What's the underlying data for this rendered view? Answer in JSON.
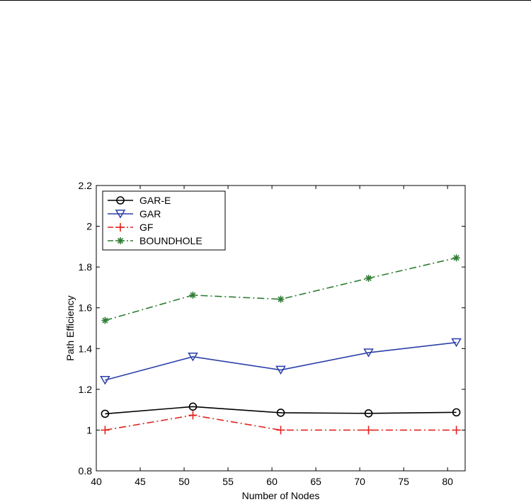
{
  "chart_data": {
    "type": "line",
    "title": "",
    "xlabel": "Number of Nodes",
    "ylabel": "Path Efficiency",
    "xlim": [
      40,
      82
    ],
    "ylim": [
      0.8,
      2.2
    ],
    "xticks": [
      40,
      45,
      50,
      55,
      60,
      65,
      70,
      75,
      80
    ],
    "yticks": [
      0.8,
      1,
      1.2,
      1.4,
      1.6,
      1.8,
      2,
      2.2
    ],
    "xtick_labels": [
      "40",
      "45",
      "50",
      "55",
      "60",
      "65",
      "70",
      "75",
      "80"
    ],
    "ytick_labels": [
      "0.8",
      "1",
      "1.2",
      "1.4",
      "1.6",
      "1.8",
      "2",
      "2.2"
    ],
    "grid": false,
    "legend_position": "top-left",
    "x": [
      41,
      51,
      61,
      71,
      81
    ],
    "series": [
      {
        "name": "GAR-E",
        "values": [
          1.08,
          1.115,
          1.085,
          1.082,
          1.087
        ],
        "color": "#000000",
        "dash": "solid",
        "marker": "circle"
      },
      {
        "name": "GAR",
        "values": [
          1.245,
          1.36,
          1.295,
          1.38,
          1.43
        ],
        "color": "#2b3fa8",
        "dash": "solid",
        "marker": "triangle-down"
      },
      {
        "name": "GF",
        "values": [
          1.0,
          1.073,
          1.0,
          1.0,
          1.0
        ],
        "color": "#e0241f",
        "dash": "dashdot",
        "marker": "plus"
      },
      {
        "name": "BOUNDHOLE",
        "values": [
          1.538,
          1.662,
          1.642,
          1.745,
          1.845
        ],
        "color": "#2e7d32",
        "dash": "dashdot",
        "marker": "asterisk"
      }
    ]
  }
}
